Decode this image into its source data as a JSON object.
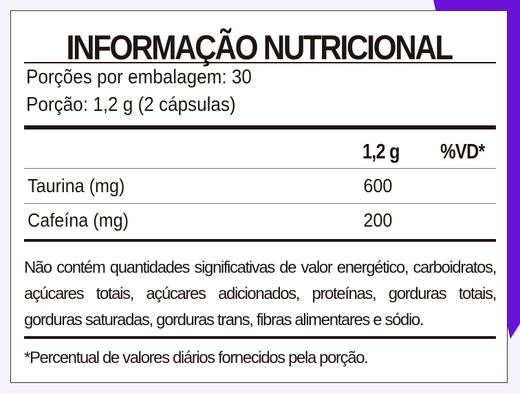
{
  "colors": {
    "accent": "#6a12d8",
    "background": "#f6f3fc",
    "text": "#1e1512"
  },
  "title": "INFORMAÇÃO NUTRICIONAL",
  "servings": {
    "per_package": "Porções por embalagem: 30",
    "serving": "Porção: 1,2 g (2 cápsulas)"
  },
  "table": {
    "headers": [
      "1,2 g",
      "%VD*"
    ],
    "rows": [
      {
        "name": "Taurina (mg)",
        "amount": "600",
        "dv": ""
      },
      {
        "name": "Cafeína (mg)",
        "amount": "200",
        "dv": ""
      }
    ]
  },
  "note": "Não contém quantidades significativas de valor energético, carboidratos, açúcares totais, açúcares adicionados, proteínas, gorduras totais, gorduras saturadas, gorduras trans, fibras alimentares e sódio.",
  "footnote": "*Percentual de valores diários fornecidos pela porção."
}
